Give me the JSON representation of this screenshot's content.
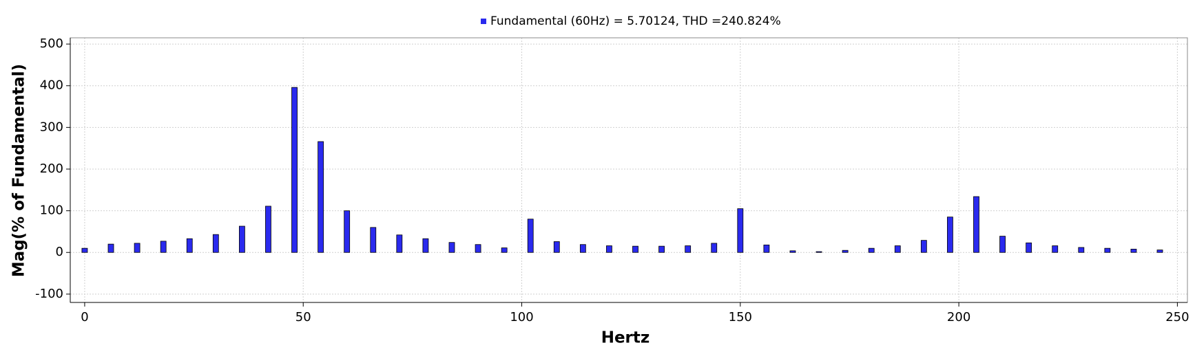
{
  "chart_data": {
    "type": "bar",
    "x_label": "Hertz",
    "y_label": "Mag(% of Fundamental)",
    "x": [
      0,
      6,
      12,
      18,
      24,
      30,
      36,
      42,
      48,
      54,
      60,
      66,
      72,
      78,
      84,
      90,
      96,
      102,
      108,
      114,
      120,
      126,
      132,
      138,
      144,
      150,
      156,
      162,
      168,
      174,
      180,
      186,
      192,
      198,
      204,
      210,
      216,
      222,
      228,
      234,
      240,
      246
    ],
    "series": [
      {
        "name": "Fundamental (60Hz) = 5.70124, THD =240.824%",
        "color": "#2a2aee",
        "values": [
          10,
          20,
          22,
          27,
          33,
          43,
          63,
          111,
          396,
          266,
          100,
          60,
          42,
          33,
          24,
          19,
          11,
          80,
          26,
          19,
          16,
          15,
          15,
          16,
          22,
          105,
          18,
          4,
          2,
          5,
          10,
          16,
          29,
          85,
          134,
          39,
          23,
          16,
          12,
          10,
          8,
          6
        ]
      }
    ],
    "xlim": [
      -3.3,
      252.3
    ],
    "ylim": [
      -120,
      515
    ],
    "xticks": [
      0,
      50,
      100,
      150,
      200,
      250
    ],
    "yticks": [
      -100,
      0,
      100,
      200,
      300,
      400,
      500
    ],
    "grid": true,
    "legend": "top"
  }
}
